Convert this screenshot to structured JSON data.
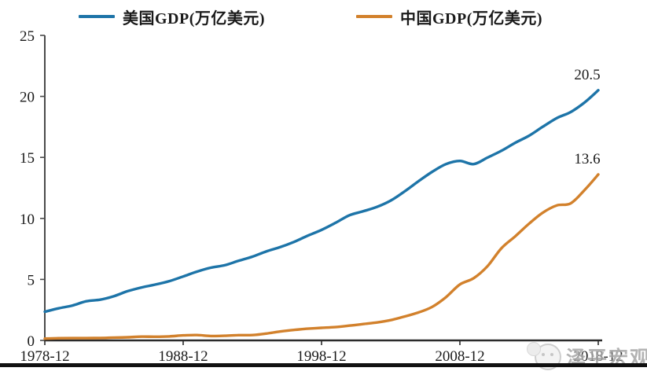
{
  "legend": {
    "items": [
      {
        "label": "美国GDP(万亿美元)",
        "color": "#1d74a8"
      },
      {
        "label": "中国GDP(万亿美元)",
        "color": "#d2812c"
      }
    ]
  },
  "watermark": {
    "text": "泽平宏观"
  },
  "chart_data": {
    "type": "line",
    "title": "",
    "xlabel": "",
    "ylabel": "",
    "x": [
      1978,
      1979,
      1980,
      1981,
      1982,
      1983,
      1984,
      1985,
      1986,
      1987,
      1988,
      1989,
      1990,
      1991,
      1992,
      1993,
      1994,
      1995,
      1996,
      1997,
      1998,
      1999,
      2000,
      2001,
      2002,
      2003,
      2004,
      2005,
      2006,
      2007,
      2008,
      2009,
      2010,
      2011,
      2012,
      2013,
      2014,
      2015,
      2016,
      2017,
      2018
    ],
    "x_tick_labels": [
      "1978-12",
      "1988-12",
      "1998-12",
      "2008-12",
      "2018-12"
    ],
    "x_tick_years": [
      1978,
      1988,
      1998,
      2008,
      2018
    ],
    "y_ticks": [
      0,
      5,
      10,
      15,
      20,
      25
    ],
    "ylim": [
      0,
      25
    ],
    "grid": false,
    "legend_position": "top",
    "series": [
      {
        "name": "美国GDP(万亿美元)",
        "color": "#1d74a8",
        "end_label": "20.5",
        "values": [
          2.35,
          2.63,
          2.86,
          3.21,
          3.34,
          3.63,
          4.04,
          4.34,
          4.58,
          4.86,
          5.24,
          5.64,
          5.96,
          6.16,
          6.52,
          6.86,
          7.29,
          7.64,
          8.07,
          8.58,
          9.06,
          9.63,
          10.25,
          10.58,
          10.94,
          11.46,
          12.21,
          13.04,
          13.82,
          14.45,
          14.71,
          14.45,
          14.99,
          15.54,
          16.2,
          16.78,
          17.52,
          18.22,
          18.71,
          19.49,
          20.5
        ]
      },
      {
        "name": "中国GDP(万亿美元)",
        "color": "#d2812c",
        "end_label": "13.6",
        "values": [
          0.15,
          0.18,
          0.19,
          0.19,
          0.2,
          0.23,
          0.26,
          0.31,
          0.3,
          0.33,
          0.41,
          0.44,
          0.36,
          0.38,
          0.43,
          0.44,
          0.56,
          0.73,
          0.86,
          0.96,
          1.03,
          1.09,
          1.21,
          1.34,
          1.47,
          1.66,
          1.96,
          2.29,
          2.75,
          3.55,
          4.59,
          5.1,
          6.09,
          7.55,
          8.53,
          9.57,
          10.48,
          11.06,
          11.23,
          12.31,
          13.6
        ]
      }
    ]
  }
}
